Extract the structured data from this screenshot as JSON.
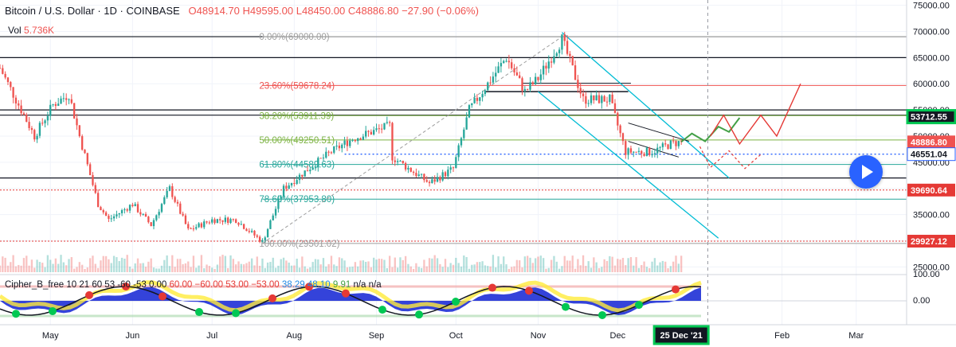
{
  "header": {
    "symbol": "Bitcoin / U.S. Dollar",
    "interval": "1D",
    "exchange": "COINBASE",
    "open": "O48914.70",
    "high": "H49595.00",
    "low": "L48450.00",
    "close": "C48886.80",
    "change": "−27.90 (−0.06%)"
  },
  "volume": {
    "label": "Vol",
    "value": "5.736K"
  },
  "indicator": {
    "name": "Cipher_B_free 10 21 60 53 -60 -53",
    "v1": "0.00",
    "v2": "60.00",
    "v3": "−60.00",
    "v4": "53.00",
    "v5": "−53.00",
    "v6": "38.29",
    "v7": "48.10",
    "v8": "9.91",
    "v9": "n/a n/a"
  },
  "colors": {
    "up": "#26a69a",
    "down": "#ef5350",
    "fib_red": "#ef5350",
    "fib_green": "#7cb342",
    "fib_blue": "#26a69a",
    "fib_gray": "#9e9e9e",
    "channel": "#00bcd4",
    "last_price": "#ef5350",
    "highlight": "#00c853"
  },
  "icons": [
    "play-icon"
  ],
  "chart_data": {
    "type": "candlestick",
    "ylim": [
      24000,
      76000
    ],
    "x_ticks": [
      "May",
      "Jun",
      "Jul",
      "Aug",
      "Sep",
      "Oct",
      "Nov",
      "Dec",
      "Feb",
      "Mar"
    ],
    "x_tick_dates": [
      "2021-05-01",
      "2021-06-01",
      "2021-07-01",
      "2021-08-01",
      "2021-09-01",
      "2021-10-01",
      "2021-11-01",
      "2021-12-01",
      "2022-02-01",
      "2022-03-01"
    ],
    "x_highlight": "25 Dec '21",
    "y_ticks": [
      75000,
      70000,
      65000,
      60000,
      55000,
      50000,
      45000,
      40000,
      35000,
      30000,
      25000
    ],
    "price_path": [
      [
        "2021-04-12",
        63000
      ],
      [
        "2021-04-18",
        57000
      ],
      [
        "2021-04-25",
        50000
      ],
      [
        "2021-05-02",
        56000
      ],
      [
        "2021-05-08",
        58000
      ],
      [
        "2021-05-12",
        50000
      ],
      [
        "2021-05-19",
        37000
      ],
      [
        "2021-05-23",
        34000
      ],
      [
        "2021-06-01",
        37000
      ],
      [
        "2021-06-08",
        33000
      ],
      [
        "2021-06-15",
        40000
      ],
      [
        "2021-06-22",
        32000
      ],
      [
        "2021-07-01",
        34000
      ],
      [
        "2021-07-10",
        34000
      ],
      [
        "2021-07-20",
        29800
      ],
      [
        "2021-07-28",
        40000
      ],
      [
        "2021-08-07",
        44000
      ],
      [
        "2021-08-15",
        47000
      ],
      [
        "2021-08-23",
        49500
      ],
      [
        "2021-09-06",
        52000
      ],
      [
        "2021-09-07",
        46000
      ],
      [
        "2021-09-21",
        41000
      ],
      [
        "2021-09-30",
        43800
      ],
      [
        "2021-10-06",
        55000
      ],
      [
        "2021-10-20",
        65000
      ],
      [
        "2021-10-27",
        58500
      ],
      [
        "2021-11-01",
        61000
      ],
      [
        "2021-11-10",
        68500
      ],
      [
        "2021-11-18",
        57000
      ],
      [
        "2021-11-28",
        57000
      ],
      [
        "2021-12-04",
        47000
      ],
      [
        "2021-12-14",
        47000
      ],
      [
        "2021-12-21",
        48500
      ],
      [
        "2021-12-25",
        48886.8
      ]
    ],
    "horizontal_levels": [
      69000,
      65000,
      55000,
      54000,
      42000,
      39690.64,
      29927.12
    ],
    "fibonacci": [
      {
        "label": "0.00%(69000.00)",
        "price": 69000
      },
      {
        "label": "23.60%(59678.24)",
        "price": 59678.24
      },
      {
        "label": "38.20%(53911.39)",
        "price": 53911.39
      },
      {
        "label": "50.00%(49250.51)",
        "price": 49250.51
      },
      {
        "label": "61.80%(44589.63)",
        "price": 44589.63
      },
      {
        "label": "78.60%(37953.80)",
        "price": 37953.8
      },
      {
        "label": "100.00%(29501.02)",
        "price": 29501.02
      }
    ],
    "price_tags": [
      {
        "value": "53712.55",
        "price": 53712.55
      },
      {
        "value": "48886.80",
        "price": 48886.8
      },
      {
        "value": "46551.04",
        "price": 46551.04
      },
      {
        "value": "39690.64",
        "price": 39690.64
      },
      {
        "value": "29927.12",
        "price": 29927.12
      }
    ],
    "indicator_ticks": [
      "100.00",
      "0.00"
    ]
  }
}
